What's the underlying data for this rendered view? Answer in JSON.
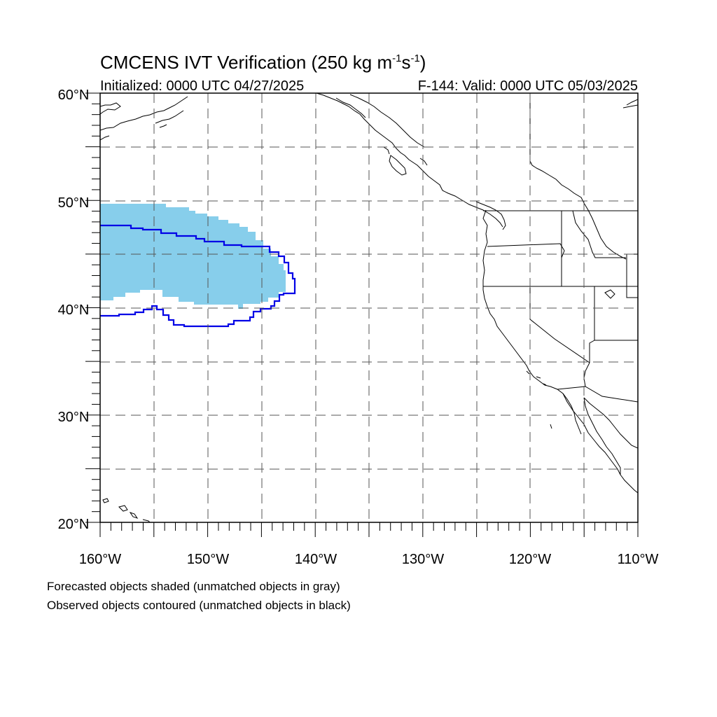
{
  "title": {
    "main": "CMCENS IVT Verification (250 kg m",
    "sup1": "-1",
    "mid": "s",
    "sup2": "-1",
    "end": ")"
  },
  "subtitle_left": "Initialized: 0000 UTC 04/27/2025",
  "subtitle_right": "F-144: Valid: 0000 UTC 05/03/2025",
  "x_tick_labels": [
    "160°W",
    "150°W",
    "140°W",
    "130°W",
    "120°W",
    "110°W"
  ],
  "y_tick_labels": [
    "60°N",
    "50°N",
    "40°N",
    "30°N",
    "20°N"
  ],
  "footnotes": [
    "Forecasted objects shaded (unmatched objects in gray)",
    "Observed objects contoured (unmatched objects in black)"
  ],
  "colors": {
    "forecast_fill": "#87ceeb",
    "observed_contour": "#0000e6",
    "grid": "#555555",
    "coast": "#000000"
  },
  "map": {
    "lon_range": [
      -160,
      -110
    ],
    "lat_range": [
      20,
      60
    ],
    "grid": "dashed, every 5 degrees"
  }
}
